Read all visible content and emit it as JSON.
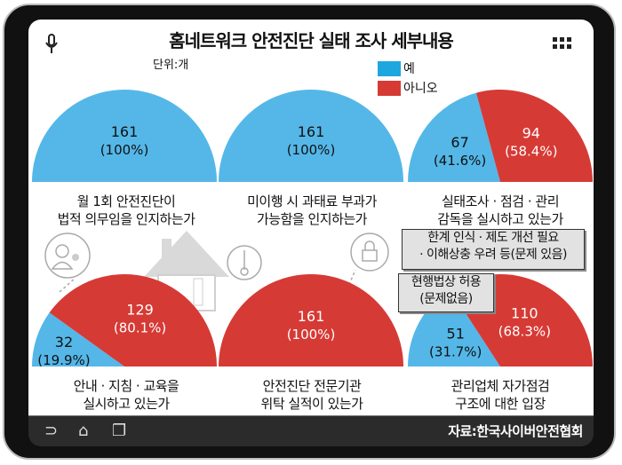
{
  "header": {
    "title": "홈네트워크 안전진단 실태 조사 세부내용",
    "unit": "단위:개"
  },
  "legend": [
    {
      "label": "예",
      "color": "#1ea6df"
    },
    {
      "label": "아니오",
      "color": "#d63a35"
    }
  ],
  "colors": {
    "yes": "#54b7e8",
    "no": "#d63a35"
  },
  "chart_data": [
    {
      "type": "pie",
      "shape": "semicircle",
      "label_line1": "월 1회 안전진단이",
      "label_line2": "법적 의무임을 인지하는가",
      "slices": [
        {
          "name": "예",
          "value": 161,
          "pct": "(100%)"
        },
        {
          "name": "아니오",
          "value": 0,
          "pct": ""
        }
      ]
    },
    {
      "type": "pie",
      "shape": "semicircle",
      "label_line1": "미이행 시 과태료 부과가",
      "label_line2": "가능함을 인지하는가",
      "slices": [
        {
          "name": "예",
          "value": 161,
          "pct": "(100%)"
        },
        {
          "name": "아니오",
          "value": 0,
          "pct": ""
        }
      ]
    },
    {
      "type": "pie",
      "shape": "semicircle",
      "label_line1": "실태조사 · 점검 · 관리",
      "label_line2": "감독을 실시하고 있는가",
      "slices": [
        {
          "name": "예",
          "value": 67,
          "pct": "(41.6%)"
        },
        {
          "name": "아니오",
          "value": 94,
          "pct": "(58.4%)"
        }
      ]
    },
    {
      "type": "pie",
      "shape": "semicircle",
      "label_line1": "안내 · 지침 · 교육을",
      "label_line2": "실시하고 있는가",
      "slices": [
        {
          "name": "예",
          "value": 32,
          "pct": "(19.9%)"
        },
        {
          "name": "아니오",
          "value": 129,
          "pct": "(80.1%)"
        }
      ]
    },
    {
      "type": "pie",
      "shape": "semicircle",
      "label_line1": "안전진단 전문기관",
      "label_line2": "위탁 실적이 있는가",
      "slices": [
        {
          "name": "예",
          "value": 0,
          "pct": ""
        },
        {
          "name": "아니오",
          "value": 161,
          "pct": "(100%)"
        }
      ]
    },
    {
      "type": "pie",
      "shape": "semicircle",
      "label_line1": "관리업체 자가점검",
      "label_line2": "구조에 대한 입장",
      "slices": [
        {
          "name": "현행법상 허용(문제없음)",
          "value": 51,
          "pct": "(31.7%)"
        },
        {
          "name": "한계 인식 · 제도 개선 필요 · 이해상충 우려 등(문제 있음)",
          "value": 110,
          "pct": "(68.3%)"
        }
      ]
    }
  ],
  "callouts": {
    "problem_line1": "한계 인식 · 제도 개선 필요",
    "problem_line2": "· 이해상충 우려 등(문제 있음)",
    "ok_line1": "현행법상 허용",
    "ok_line2": "(문제없음)"
  },
  "footer": {
    "source": "자료:한국사이버안전협회"
  },
  "icons": [
    "microphone-icon",
    "grid-menu-icon",
    "person-icon",
    "house-icon",
    "key-icon",
    "lock-icon",
    "back-icon",
    "home-icon",
    "recent-apps-icon"
  ]
}
